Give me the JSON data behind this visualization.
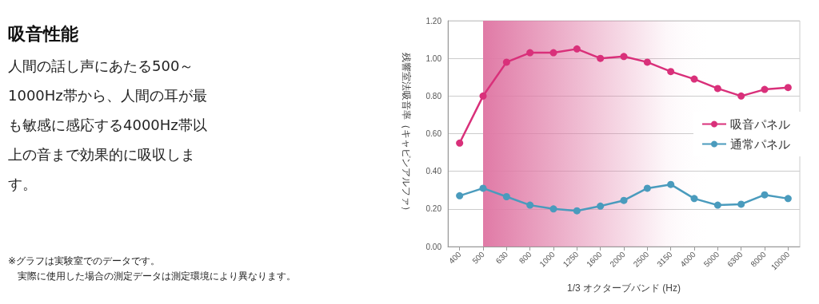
{
  "chart_data": {
    "type": "line",
    "title": "吸音性能",
    "subtitle": "人間の話し声にあたる500～1000Hz帯から、人間の耳が最も敏感に感応する4000Hz帯以上の音まで効果的に吸収します。",
    "annotations": [
      "※グラフは実験室でのデータです。",
      "実際に使用した場合の測定データは測定環境により異なります。"
    ],
    "xlabel": "1/3 オクターブバンド (Hz)",
    "ylabel": "残響室法吸音率（キャビンアルファ）",
    "categories": [
      "400",
      "500",
      "630",
      "800",
      "1000",
      "1250",
      "1600",
      "2000",
      "2500",
      "3150",
      "4000",
      "5000",
      "6300",
      "8000",
      "10000"
    ],
    "series": [
      {
        "name": "吸音パネル",
        "color": "#d9307a",
        "values": [
          0.55,
          0.8,
          0.98,
          1.03,
          1.03,
          1.05,
          1.0,
          1.01,
          0.98,
          0.93,
          0.89,
          0.84,
          0.8,
          0.835,
          0.845
        ]
      },
      {
        "name": "通常パネル",
        "color": "#4a9bbd",
        "values": [
          0.27,
          0.31,
          0.265,
          0.22,
          0.2,
          0.19,
          0.215,
          0.245,
          0.31,
          0.33,
          0.255,
          0.22,
          0.225,
          0.275,
          0.255
        ]
      }
    ],
    "ylim": [
      0,
      1.2
    ],
    "yticks": [
      {
        "value": 0,
        "label": "0.00"
      },
      {
        "value": 0.2,
        "label": "0.20"
      },
      {
        "value": 0.4,
        "label": "0.40"
      },
      {
        "value": 0.6,
        "label": "0.60"
      },
      {
        "value": 0.8,
        "label": "0.80"
      },
      {
        "value": 1,
        "label": "1.00"
      },
      {
        "value": 1.2,
        "label": "1.20"
      }
    ],
    "bands": [
      {
        "axis": "x",
        "from": "500",
        "to": "10000",
        "color": "#e07aa6"
      }
    ],
    "grid": "y",
    "legend": "right",
    "marker": "circle",
    "line_style": "solid"
  }
}
